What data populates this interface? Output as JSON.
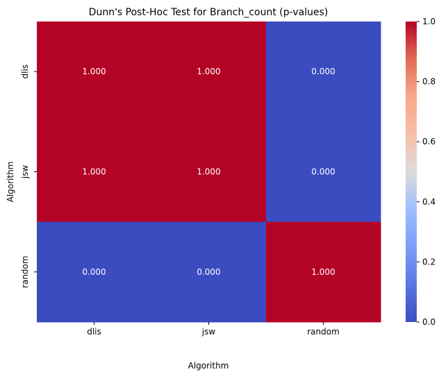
{
  "chart_data": {
    "type": "heatmap",
    "title": "Dunn's Post-Hoc Test for Branch_count (p-values)",
    "xlabel": "Algorithm",
    "ylabel": "Algorithm",
    "x_categories": [
      "dlis",
      "jsw",
      "random"
    ],
    "y_categories": [
      "dlis",
      "jsw",
      "random"
    ],
    "values": [
      [
        1.0,
        1.0,
        0.0
      ],
      [
        1.0,
        1.0,
        0.0
      ],
      [
        0.0,
        0.0,
        1.0
      ]
    ],
    "value_labels": [
      [
        "1.000",
        "1.000",
        "0.000"
      ],
      [
        "1.000",
        "1.000",
        "0.000"
      ],
      [
        "0.000",
        "0.000",
        "1.000"
      ]
    ],
    "colormap": "coolwarm",
    "color_low": "#3b4cc0",
    "color_high": "#b40426",
    "vmin": 0.0,
    "vmax": 1.0,
    "colorbar_ticks": [
      "0.0",
      "0.2",
      "0.4",
      "0.6",
      "0.8",
      "1.0"
    ],
    "legend_position": "right"
  }
}
